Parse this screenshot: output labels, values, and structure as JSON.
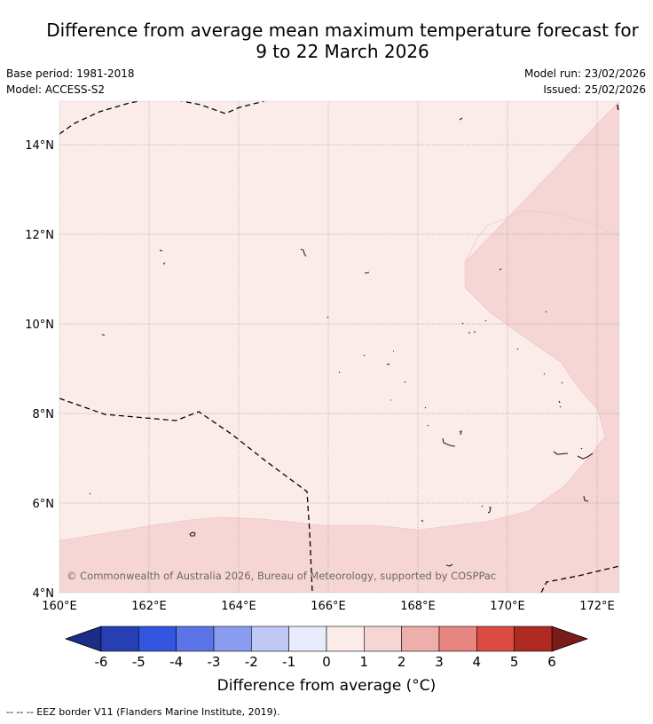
{
  "header": {
    "title_line1": "Difference from average mean maximum temperature forecast for",
    "title_line2": "9 to 22 March 2026",
    "base_period": "Base period: 1981-2018",
    "model": "Model: ACCESS-S2",
    "model_run": "Model run: 23/02/2026",
    "issued": "Issued: 25/02/2026"
  },
  "map": {
    "lat_labels": [
      "14°N",
      "12°N",
      "10°N",
      "8°N",
      "6°N",
      "4°N"
    ],
    "lon_labels": [
      "160°E",
      "162°E",
      "164°E",
      "166°E",
      "168°E",
      "170°E",
      "172°E"
    ],
    "copyright": "© Commonwealth of Australia 2026, Bureau of Meteorology, supported by COSPPac",
    "colors": {
      "band_0_1": "#fbecea",
      "band_1_2": "#f5d6d4",
      "grid": "#999999",
      "border": "#000000"
    }
  },
  "colorbar": {
    "ticks": [
      "-6",
      "-5",
      "-4",
      "-3",
      "-2",
      "-1",
      "0",
      "1",
      "2",
      "3",
      "4",
      "5",
      "6"
    ],
    "colors": [
      "#263fb3",
      "#3355e0",
      "#5b74e8",
      "#8a9cef",
      "#c0c8f6",
      "#e8ebfc",
      "#fbecea",
      "#f5d6d4",
      "#eeaeaa",
      "#e78580",
      "#db4b43",
      "#ae2a22"
    ],
    "under_color": "#1b2d86",
    "over_color": "#7a1c1a",
    "label": "Difference from average (°C)"
  },
  "footnote": "--  --  -- EEZ border V11 (Flanders Marine Institute, 2019)."
}
